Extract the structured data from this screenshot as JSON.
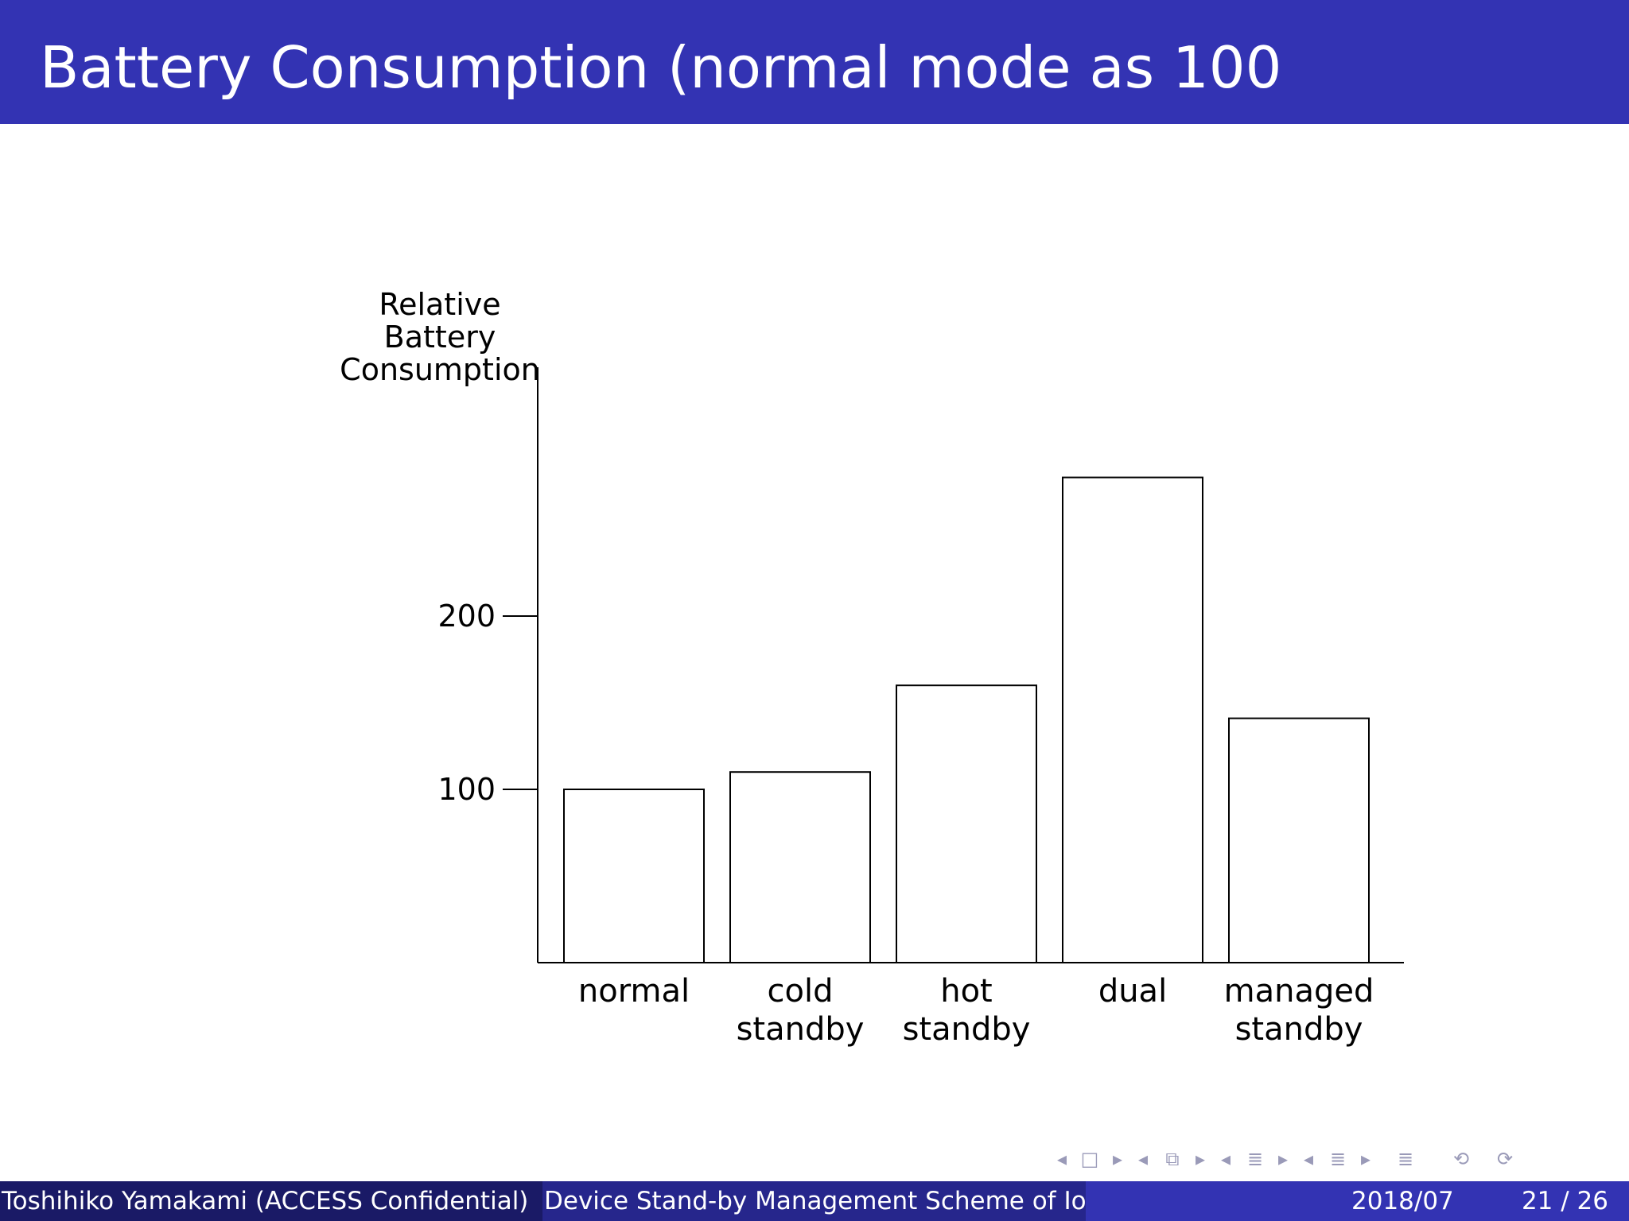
{
  "slide": {
    "title": "Battery Consumption (normal mode as 100",
    "footer": {
      "author": "Toshihiko Yamakami  (ACCESS Confidential)",
      "talk_title": "Device Stand-by Management Scheme of IoT",
      "date": "2018/07",
      "page": "21 / 26"
    },
    "nav_icons": [
      "nav-left-arrow",
      "nav-frame-icon",
      "nav-right-arrow",
      "nav-left-arrow",
      "nav-subsection-icon",
      "nav-right-arrow",
      "nav-left-arrow",
      "nav-section-icon",
      "nav-right-arrow",
      "nav-left-arrow",
      "nav-toc-icon",
      "nav-right-arrow",
      "nav-appendix-icon",
      "nav-search-icon",
      "nav-back-icon"
    ]
  },
  "chart_data": {
    "type": "bar",
    "ylabel_lines": [
      "Relative",
      "Battery",
      "Consumption"
    ],
    "categories": [
      [
        "normal"
      ],
      [
        "cold",
        "standby"
      ],
      [
        "hot",
        "standby"
      ],
      [
        "dual"
      ],
      [
        "managed",
        "standby"
      ]
    ],
    "values": [
      100,
      110,
      160,
      280,
      141
    ],
    "yticks": [
      100,
      200
    ],
    "ylim": [
      0,
      335
    ],
    "bar_fill": "#ffffff",
    "bar_stroke": "#000000",
    "grid": false
  }
}
